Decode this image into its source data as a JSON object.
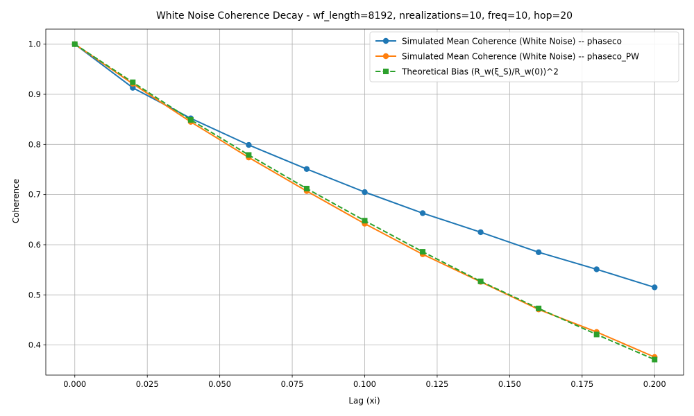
{
  "chart_data": {
    "type": "line",
    "title": "White Noise Coherence Decay - wf_length=8192, nrealizations=10, freq=10, hop=20",
    "xlabel": "Lag (xi)",
    "ylabel": "Coherence",
    "xlim": [
      -0.01,
      0.21
    ],
    "ylim": [
      0.34,
      1.03
    ],
    "xticks": [
      "0.000",
      "0.025",
      "0.050",
      "0.075",
      "0.100",
      "0.125",
      "0.150",
      "0.175",
      "0.200"
    ],
    "yticks": [
      "0.4",
      "0.5",
      "0.6",
      "0.7",
      "0.8",
      "0.9",
      "1.0"
    ],
    "grid": true,
    "legend_position": "top-right",
    "x": [
      0.0,
      0.02,
      0.04,
      0.06,
      0.08,
      0.1,
      0.12,
      0.14,
      0.16,
      0.18,
      0.2
    ],
    "series": [
      {
        "name": "Simulated Mean Coherence (White Noise) -- phaseco",
        "color": "#1f77b4",
        "marker": "circle",
        "linestyle": "solid",
        "values": [
          1.0,
          0.913,
          0.852,
          0.799,
          0.751,
          0.705,
          0.663,
          0.625,
          0.585,
          0.551,
          0.515
        ]
      },
      {
        "name": "Simulated Mean Coherence (White Noise) -- phaseco_PW",
        "color": "#ff7f0e",
        "marker": "circle",
        "linestyle": "solid",
        "values": [
          1.0,
          0.921,
          0.845,
          0.774,
          0.707,
          0.642,
          0.581,
          0.526,
          0.471,
          0.426,
          0.376
        ]
      },
      {
        "name": "Theoretical Bias (R_w(ξ_S)/R_w(0))^2",
        "color": "#2ca02c",
        "marker": "square",
        "linestyle": "dashed",
        "values": [
          1.0,
          0.924,
          0.849,
          0.779,
          0.712,
          0.648,
          0.586,
          0.527,
          0.473,
          0.421,
          0.371
        ]
      }
    ]
  }
}
